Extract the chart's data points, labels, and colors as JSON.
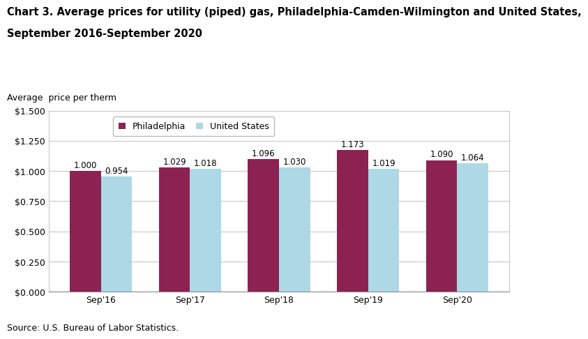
{
  "title_line1": "Chart 3. Average prices for utility (piped) gas, Philadelphia-Camden-Wilmington and United States,",
  "title_line2": "September 2016-September 2020",
  "ylabel": "Average  price per therm",
  "source": "Source: U.S. Bureau of Labor Statistics.",
  "categories": [
    "Sep'16",
    "Sep'17",
    "Sep'18",
    "Sep'19",
    "Sep'20"
  ],
  "philadelphia": [
    1.0,
    1.029,
    1.096,
    1.173,
    1.09
  ],
  "united_states": [
    0.954,
    1.018,
    1.03,
    1.019,
    1.064
  ],
  "philly_color": "#8B2252",
  "us_color": "#ADD8E6",
  "ylim": [
    0,
    1.5
  ],
  "yticks": [
    0.0,
    0.25,
    0.5,
    0.75,
    1.0,
    1.25,
    1.5
  ],
  "bar_width": 0.35,
  "legend_labels": [
    "Philadelphia",
    "United States"
  ],
  "title_fontsize": 10.5,
  "label_fontsize": 9,
  "tick_fontsize": 9,
  "annotation_fontsize": 8.5,
  "source_fontsize": 9,
  "background_color": "#ffffff",
  "grid_color": "#c8c8c8"
}
